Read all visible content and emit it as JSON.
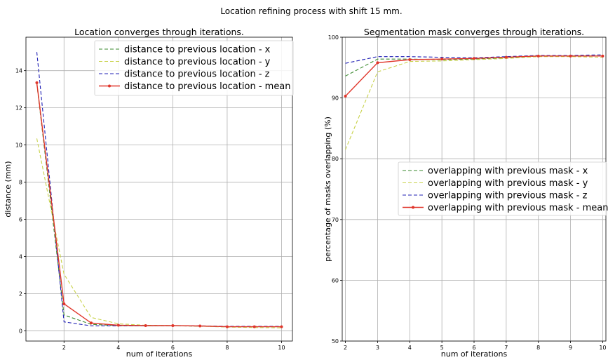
{
  "figure": {
    "suptitle": "Location refining process with shift 15 mm."
  },
  "colors": {
    "x": "#3a8a2e",
    "y": "#c8d24a",
    "z": "#1f1fb4",
    "mean": "#e0352a",
    "grid": "#b0b0b0"
  },
  "chart_data": [
    {
      "type": "line",
      "title": "Location converges through iterations.",
      "xlabel": "num of iterations",
      "ylabel": "distance (mm)",
      "xlim": [
        0.6,
        10.4
      ],
      "ylim": [
        -0.55,
        15.8
      ],
      "xticks": [
        2,
        4,
        6,
        8,
        10
      ],
      "yticks": [
        0,
        2,
        4,
        6,
        8,
        10,
        12,
        14
      ],
      "grid": true,
      "legend_position": "top-right",
      "x": [
        1,
        2,
        3,
        4,
        5,
        6,
        7,
        8,
        9,
        10
      ],
      "series": [
        {
          "name": "distance to previous location - x",
          "key": "x",
          "style": "dashed",
          "values": [
            13.3,
            0.85,
            0.35,
            0.28,
            0.27,
            0.27,
            0.25,
            0.22,
            0.22,
            0.22
          ]
        },
        {
          "name": "distance to previous location - y",
          "key": "y",
          "style": "dashed",
          "values": [
            10.35,
            3.05,
            0.72,
            0.38,
            0.3,
            0.28,
            0.25,
            0.2,
            0.18,
            0.16
          ]
        },
        {
          "name": "distance to previous location - z",
          "key": "z",
          "style": "dashed",
          "values": [
            15.0,
            0.48,
            0.27,
            0.27,
            0.27,
            0.28,
            0.27,
            0.24,
            0.24,
            0.24
          ]
        },
        {
          "name": "distance to previous location - mean",
          "key": "mean",
          "style": "solid-marker",
          "values": [
            13.35,
            1.45,
            0.42,
            0.3,
            0.28,
            0.28,
            0.26,
            0.22,
            0.22,
            0.22
          ]
        }
      ]
    },
    {
      "type": "line",
      "title": "Segmentation mask converges through iterations.",
      "xlabel": "num of iterations",
      "ylabel": "percentage of masks overlapping (%)",
      "xlim": [
        1.9,
        10.1
      ],
      "ylim": [
        50,
        100
      ],
      "xticks": [
        2,
        3,
        4,
        5,
        6,
        7,
        8,
        9,
        10
      ],
      "yticks": [
        50,
        60,
        70,
        80,
        90,
        100
      ],
      "grid": true,
      "legend_position": "center-right",
      "x": [
        2,
        3,
        4,
        5,
        6,
        7,
        8,
        9,
        10
      ],
      "series": [
        {
          "name": "overlapping with previous mask - x",
          "key": "x",
          "style": "dashed",
          "values": [
            93.6,
            96.4,
            96.4,
            96.3,
            96.4,
            96.6,
            96.9,
            96.9,
            96.9
          ]
        },
        {
          "name": "overlapping with previous mask - y",
          "key": "y",
          "style": "dashed",
          "values": [
            81.5,
            94.3,
            96.0,
            96.1,
            96.3,
            96.5,
            96.8,
            96.8,
            96.7
          ]
        },
        {
          "name": "overlapping with previous mask - z",
          "key": "z",
          "style": "dashed",
          "values": [
            95.7,
            96.8,
            96.8,
            96.7,
            96.6,
            96.8,
            97.0,
            97.0,
            97.1
          ]
        },
        {
          "name": "overlapping with previous mask - mean",
          "key": "mean",
          "style": "solid-marker",
          "values": [
            90.3,
            95.8,
            96.3,
            96.4,
            96.5,
            96.7,
            96.9,
            96.9,
            96.9
          ]
        }
      ]
    }
  ]
}
